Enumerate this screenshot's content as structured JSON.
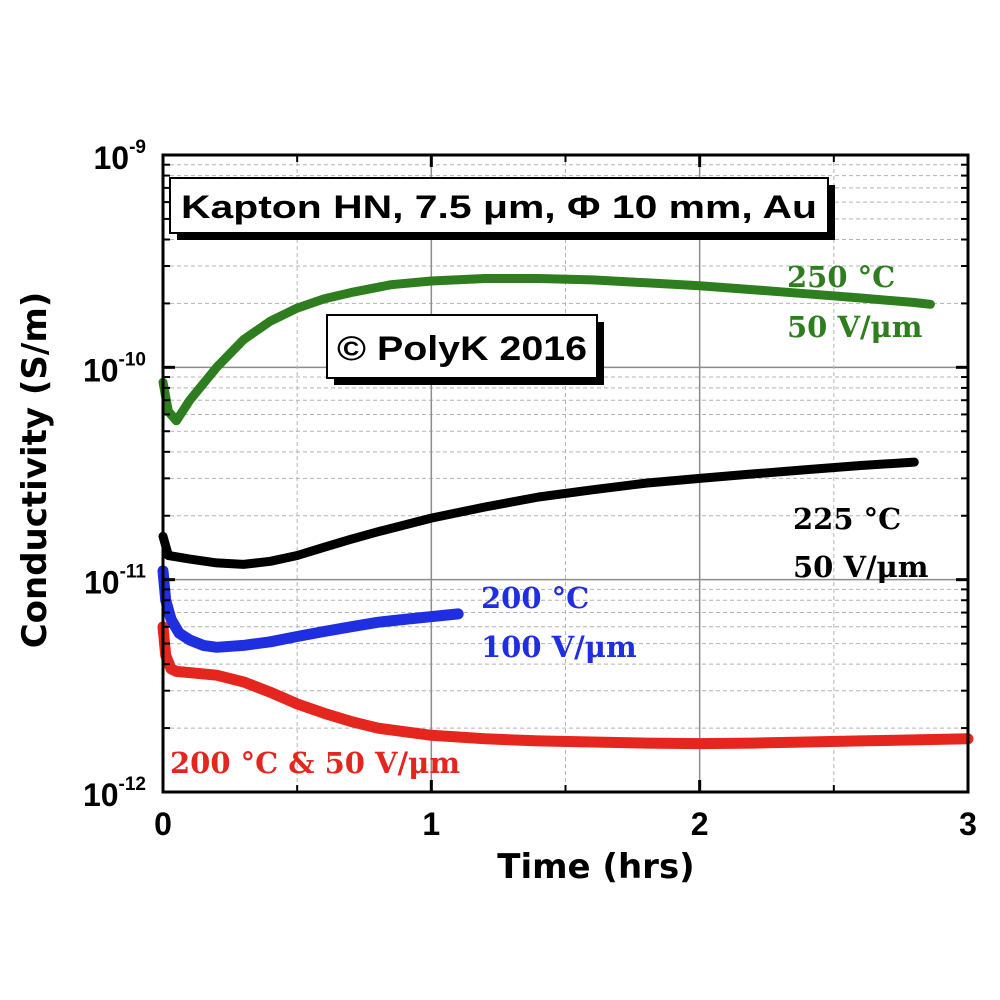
{
  "chart_data": {
    "type": "line",
    "y_scale": "log",
    "xlabel": "Time (hrs)",
    "ylabel": "Conductivity (S/m)",
    "xlim": [
      0,
      3
    ],
    "ylim": [
      1e-12,
      1e-09
    ],
    "x_ticks": [
      {
        "value": 0,
        "label": "0"
      },
      {
        "value": 1,
        "label": "1"
      },
      {
        "value": 2,
        "label": "2"
      },
      {
        "value": 3,
        "label": "3"
      }
    ],
    "y_ticks": [
      {
        "value": 1e-12,
        "base": "10",
        "exp": "-12"
      },
      {
        "value": 1e-11,
        "base": "10",
        "exp": "-11"
      },
      {
        "value": 1e-10,
        "base": "10",
        "exp": "-10"
      },
      {
        "value": 1e-09,
        "base": "10",
        "exp": "-9"
      }
    ],
    "grid": true,
    "annotations": {
      "sample_box": "Kapton HN, 7.5 μm, Φ 10 mm, Au",
      "copyright_box": "© PolyK 2016"
    },
    "series": [
      {
        "name": "250 °C 50 V/μm",
        "label_lines": [
          "250 °C",
          "50 V/μm"
        ],
        "color": "#2e7d1f",
        "x": [
          0.0,
          0.02,
          0.05,
          0.1,
          0.2,
          0.3,
          0.4,
          0.5,
          0.6,
          0.7,
          0.85,
          1.0,
          1.2,
          1.4,
          1.6,
          1.8,
          2.0,
          2.2,
          2.4,
          2.6,
          2.8,
          2.86
        ],
        "y": [
          8.5e-11,
          6.2e-11,
          5.6e-11,
          7e-11,
          1e-10,
          1.35e-10,
          1.65e-10,
          1.9e-10,
          2.1e-10,
          2.25e-10,
          2.45e-10,
          2.55e-10,
          2.62e-10,
          2.62e-10,
          2.58e-10,
          2.5e-10,
          2.42e-10,
          2.32e-10,
          2.22e-10,
          2.12e-10,
          2.02e-10,
          1.98e-10
        ]
      },
      {
        "name": "225 °C 50 V/μm",
        "label_lines": [
          "225 °C",
          "50 V/μm"
        ],
        "color": "#000000",
        "x": [
          0.0,
          0.02,
          0.1,
          0.2,
          0.3,
          0.4,
          0.5,
          0.6,
          0.7,
          0.8,
          1.0,
          1.2,
          1.4,
          1.6,
          1.8,
          2.0,
          2.2,
          2.4,
          2.6,
          2.8
        ],
        "y": [
          1.6e-11,
          1.3e-11,
          1.25e-11,
          1.2e-11,
          1.18e-11,
          1.22e-11,
          1.3e-11,
          1.42e-11,
          1.55e-11,
          1.68e-11,
          1.95e-11,
          2.2e-11,
          2.45e-11,
          2.65e-11,
          2.85e-11,
          3e-11,
          3.15e-11,
          3.3e-11,
          3.45e-11,
          3.58e-11
        ]
      },
      {
        "name": "200 °C 100 V/μm",
        "label_lines": [
          "200 °C",
          "100 V/μm"
        ],
        "color": "#1f2fe0",
        "x": [
          0.0,
          0.01,
          0.03,
          0.06,
          0.1,
          0.15,
          0.2,
          0.3,
          0.4,
          0.5,
          0.6,
          0.7,
          0.8,
          0.9,
          1.0,
          1.1
        ],
        "y": [
          1.1e-11,
          8e-12,
          6.5e-12,
          5.6e-12,
          5.2e-12,
          4.9e-12,
          4.8e-12,
          4.9e-12,
          5.1e-12,
          5.4e-12,
          5.7e-12,
          6e-12,
          6.3e-12,
          6.5e-12,
          6.7e-12,
          6.9e-12
        ]
      },
      {
        "name": "200 °C & 50 V/μm",
        "label_lines": [
          "200 °C & 50 V/μm"
        ],
        "color": "#e5261e",
        "x": [
          0.0,
          0.01,
          0.03,
          0.05,
          0.1,
          0.2,
          0.3,
          0.4,
          0.5,
          0.6,
          0.7,
          0.8,
          1.0,
          1.2,
          1.4,
          1.6,
          1.8,
          2.0,
          2.2,
          2.4,
          2.6,
          2.8,
          3.0
        ],
        "y": [
          6e-12,
          4.4e-12,
          3.8e-12,
          3.7e-12,
          3.65e-12,
          3.55e-12,
          3.3e-12,
          2.95e-12,
          2.6e-12,
          2.35e-12,
          2.15e-12,
          2e-12,
          1.85e-12,
          1.78e-12,
          1.74e-12,
          1.72e-12,
          1.7e-12,
          1.69e-12,
          1.7e-12,
          1.72e-12,
          1.74e-12,
          1.76e-12,
          1.78e-12
        ]
      }
    ]
  }
}
